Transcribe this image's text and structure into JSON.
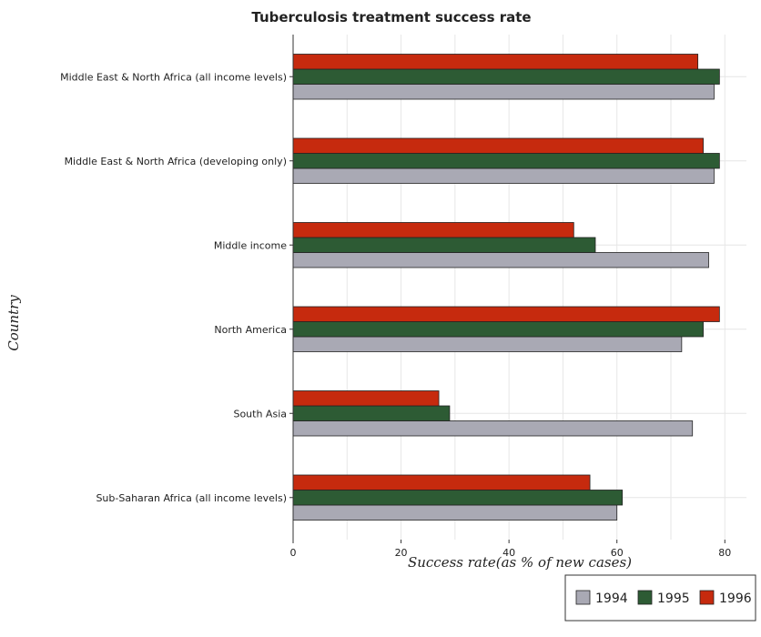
{
  "chart_data": {
    "type": "bar",
    "orientation": "horizontal",
    "title": "Tuberculosis treatment success rate",
    "xlabel": "Success rate(as % of new cases)",
    "ylabel": "Country",
    "xlim": [
      0,
      84
    ],
    "xticks": [
      "0",
      "20",
      "40",
      "60",
      "80"
    ],
    "grid": true,
    "legend_position": "bottom-right",
    "categories": [
      "Middle East & North Africa (all income levels)",
      "Middle East & North Africa (developing only)",
      "Middle income",
      "North America",
      "South Asia",
      "Sub-Saharan Africa (all income levels)"
    ],
    "series": [
      {
        "name": "1994",
        "color": "#a9a9b4",
        "values": [
          78,
          78,
          77,
          72,
          74,
          60
        ]
      },
      {
        "name": "1995",
        "color": "#2d5b34",
        "values": [
          79,
          79,
          56,
          76,
          29,
          61
        ]
      },
      {
        "name": "1996",
        "color": "#c62a0e",
        "values": [
          75,
          76,
          52,
          79,
          27,
          55
        ]
      }
    ]
  }
}
